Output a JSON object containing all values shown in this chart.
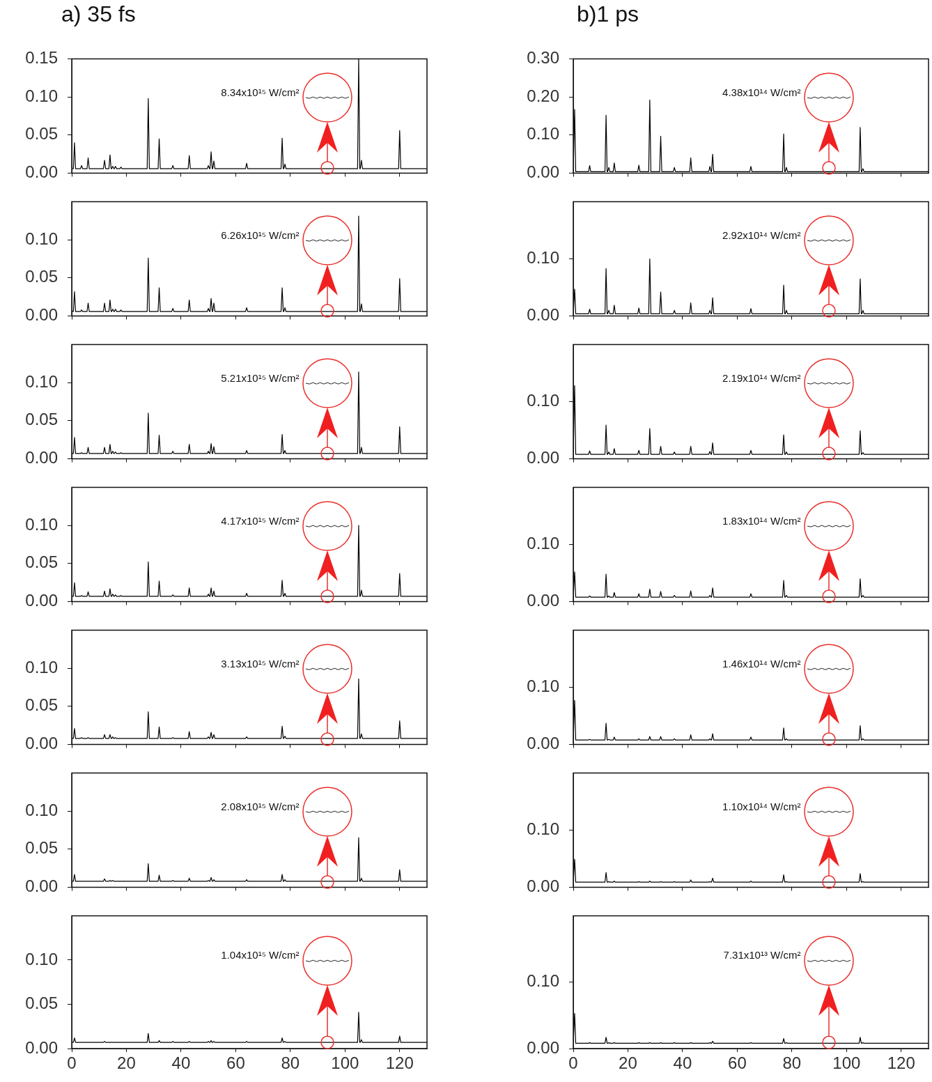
{
  "chart_data": [
    {
      "type": "line",
      "title": "a) 35 fs",
      "annotations": [
        "8.34x10¹⁵ W/cm²"
      ],
      "xlim": [
        0,
        130
      ],
      "xticks": [
        0,
        20,
        40,
        60,
        80,
        100,
        120
      ],
      "ylim": [
        0,
        0.15
      ],
      "yticks": [
        {
          "value": 0,
          "label": "0.00"
        },
        {
          "value": 0.05,
          "label": "0.05"
        },
        {
          "value": 0.1,
          "label": "0.10"
        },
        {
          "value": 0.15,
          "label": "0.15"
        }
      ],
      "tick_labels": "y",
      "x": [
        0,
        0.6,
        1,
        1.4,
        3.2,
        3.6,
        4,
        5.6,
        6,
        6.4,
        11.6,
        12,
        12.4,
        13.6,
        14,
        14.4,
        14.6,
        15,
        15.4,
        15.6,
        16,
        16.4,
        17.6,
        18,
        18.4,
        27.6,
        28,
        28.4,
        31.6,
        32,
        32.4,
        36.6,
        37,
        37.4,
        42.6,
        43,
        43.4,
        49.6,
        50,
        50.4,
        50.6,
        51,
        51.4,
        51.6,
        52,
        52.4,
        63.6,
        64,
        64.4,
        76.6,
        77,
        77.4,
        77.6,
        78,
        78.4,
        104.6,
        105,
        105.4,
        105.6,
        106,
        106.4,
        119.6,
        120,
        120.4,
        130
      ],
      "series": [
        {
          "color": "#000000",
          "values": [
            0.006,
            0.006,
            0.04,
            0.006,
            0.006,
            0.01,
            0.006,
            0.006,
            0.02,
            0.006,
            0.006,
            0.017,
            0.006,
            0.006,
            0.024,
            0.006,
            0.006,
            0.009,
            0.006,
            0.006,
            0.009,
            0.006,
            0.006,
            0.008,
            0.006,
            0.006,
            0.098,
            0.006,
            0.006,
            0.045,
            0.006,
            0.006,
            0.01,
            0.006,
            0.006,
            0.023,
            0.006,
            0.006,
            0.01,
            0.006,
            0.006,
            0.028,
            0.006,
            0.006,
            0.016,
            0.006,
            0.006,
            0.013,
            0.006,
            0.006,
            0.046,
            0.006,
            0.006,
            0.012,
            0.006,
            0.006,
            0.15,
            0.006,
            0.006,
            0.017,
            0.006,
            0.006,
            0.056,
            0.006,
            0.006
          ]
        }
      ]
    },
    {
      "type": "line",
      "annotations": [
        "6.26x10¹⁵ W/cm²"
      ],
      "xlim": [
        0,
        130
      ],
      "xticks": [
        0,
        20,
        40,
        60,
        80,
        100,
        120
      ],
      "ylim": [
        0,
        0.15
      ],
      "yticks": [
        {
          "value": 0,
          "label": "0.00"
        },
        {
          "value": 0.05,
          "label": "0.05"
        },
        {
          "value": 0.1,
          "label": "0.10"
        }
      ],
      "tick_labels": "y",
      "x": [
        0,
        0.6,
        1,
        1.4,
        3.2,
        3.6,
        4,
        5.6,
        6,
        6.4,
        11.6,
        12,
        12.4,
        13.6,
        14,
        14.4,
        14.6,
        15,
        15.4,
        15.6,
        16,
        16.4,
        17.6,
        18,
        18.4,
        27.6,
        28,
        28.4,
        31.6,
        32,
        32.4,
        36.6,
        37,
        37.4,
        42.6,
        43,
        43.4,
        49.6,
        50,
        50.4,
        50.6,
        51,
        51.4,
        51.6,
        52,
        52.4,
        63.6,
        64,
        64.4,
        76.6,
        77,
        77.4,
        77.6,
        78,
        78.4,
        104.6,
        105,
        105.4,
        105.6,
        106,
        106.4,
        119.6,
        120,
        120.4,
        130
      ],
      "series": [
        {
          "color": "#000000",
          "values": [
            0.006,
            0.006,
            0.032,
            0.006,
            0.006,
            0.008,
            0.006,
            0.006,
            0.017,
            0.006,
            0.006,
            0.017,
            0.006,
            0.006,
            0.021,
            0.006,
            0.006,
            0.009,
            0.006,
            0.006,
            0.009,
            0.006,
            0.006,
            0.008,
            0.006,
            0.006,
            0.076,
            0.006,
            0.006,
            0.037,
            0.006,
            0.006,
            0.01,
            0.006,
            0.006,
            0.021,
            0.006,
            0.006,
            0.01,
            0.006,
            0.006,
            0.023,
            0.006,
            0.006,
            0.017,
            0.006,
            0.006,
            0.011,
            0.006,
            0.006,
            0.037,
            0.006,
            0.006,
            0.011,
            0.006,
            0.006,
            0.131,
            0.006,
            0.006,
            0.016,
            0.006,
            0.006,
            0.049,
            0.006,
            0.006
          ]
        }
      ]
    },
    {
      "type": "line",
      "annotations": [
        "5.21x10¹⁵ W/cm²"
      ],
      "xlim": [
        0,
        130
      ],
      "xticks": [
        0,
        20,
        40,
        60,
        80,
        100,
        120
      ],
      "ylim": [
        0,
        0.15
      ],
      "yticks": [
        {
          "value": 0,
          "label": "0.00"
        },
        {
          "value": 0.05,
          "label": "0.05"
        },
        {
          "value": 0.1,
          "label": "0.10"
        }
      ],
      "tick_labels": "y",
      "x": [
        0,
        0.6,
        1,
        1.4,
        3.2,
        3.6,
        4,
        5.6,
        6,
        6.4,
        11.6,
        12,
        12.4,
        13.6,
        14,
        14.4,
        14.6,
        15,
        15.4,
        15.6,
        16,
        16.4,
        17.6,
        18,
        18.4,
        27.6,
        28,
        28.4,
        31.6,
        32,
        32.4,
        36.6,
        37,
        37.4,
        42.6,
        43,
        43.4,
        49.6,
        50,
        50.4,
        50.6,
        51,
        51.4,
        51.6,
        52,
        52.4,
        63.6,
        64,
        64.4,
        76.6,
        77,
        77.4,
        77.6,
        78,
        78.4,
        104.6,
        105,
        105.4,
        105.6,
        106,
        106.4,
        119.6,
        120,
        120.4,
        130
      ],
      "series": [
        {
          "color": "#000000",
          "values": [
            0.007,
            0.007,
            0.028,
            0.007,
            0.007,
            0.008,
            0.007,
            0.007,
            0.015,
            0.007,
            0.007,
            0.015,
            0.007,
            0.007,
            0.019,
            0.007,
            0.007,
            0.01,
            0.007,
            0.007,
            0.009,
            0.007,
            0.007,
            0.008,
            0.007,
            0.007,
            0.06,
            0.007,
            0.007,
            0.031,
            0.007,
            0.007,
            0.01,
            0.007,
            0.007,
            0.019,
            0.007,
            0.007,
            0.01,
            0.007,
            0.007,
            0.02,
            0.007,
            0.007,
            0.016,
            0.007,
            0.007,
            0.011,
            0.007,
            0.007,
            0.032,
            0.007,
            0.007,
            0.011,
            0.007,
            0.007,
            0.114,
            0.007,
            0.007,
            0.015,
            0.007,
            0.007,
            0.042,
            0.007,
            0.007
          ]
        }
      ]
    },
    {
      "type": "line",
      "annotations": [
        "4.17x10¹⁵ W/cm²"
      ],
      "xlim": [
        0,
        130
      ],
      "xticks": [
        0,
        20,
        40,
        60,
        80,
        100,
        120
      ],
      "ylim": [
        0,
        0.15
      ],
      "yticks": [
        {
          "value": 0,
          "label": "0.00"
        },
        {
          "value": 0.05,
          "label": "0.05"
        },
        {
          "value": 0.1,
          "label": "0.10"
        }
      ],
      "tick_labels": "y",
      "x": [
        0,
        0.6,
        1,
        1.4,
        3.2,
        3.6,
        4,
        5.6,
        6,
        6.4,
        11.6,
        12,
        12.4,
        13.6,
        14,
        14.4,
        14.6,
        15,
        15.4,
        15.6,
        16,
        16.4,
        17.6,
        18,
        18.4,
        27.6,
        28,
        28.4,
        31.6,
        32,
        32.4,
        36.6,
        37,
        37.4,
        42.6,
        43,
        43.4,
        49.6,
        50,
        50.4,
        50.6,
        51,
        51.4,
        51.6,
        52,
        52.4,
        63.6,
        64,
        64.4,
        76.6,
        77,
        77.4,
        77.6,
        78,
        78.4,
        104.6,
        105,
        105.4,
        105.6,
        106,
        106.4,
        119.6,
        120,
        120.4,
        130
      ],
      "series": [
        {
          "color": "#000000",
          "values": [
            0.007,
            0.007,
            0.025,
            0.007,
            0.007,
            0.008,
            0.007,
            0.007,
            0.013,
            0.007,
            0.007,
            0.014,
            0.007,
            0.007,
            0.017,
            0.007,
            0.007,
            0.01,
            0.007,
            0.007,
            0.009,
            0.007,
            0.007,
            0.008,
            0.007,
            0.007,
            0.052,
            0.007,
            0.007,
            0.027,
            0.007,
            0.007,
            0.009,
            0.007,
            0.007,
            0.018,
            0.007,
            0.007,
            0.01,
            0.007,
            0.007,
            0.018,
            0.007,
            0.007,
            0.014,
            0.007,
            0.007,
            0.011,
            0.007,
            0.007,
            0.028,
            0.007,
            0.007,
            0.011,
            0.007,
            0.007,
            0.1,
            0.007,
            0.007,
            0.015,
            0.007,
            0.007,
            0.037,
            0.007,
            0.007
          ]
        }
      ]
    },
    {
      "type": "line",
      "annotations": [
        "3.13x10¹⁵ W/cm²"
      ],
      "xlim": [
        0,
        130
      ],
      "xticks": [
        0,
        20,
        40,
        60,
        80,
        100,
        120
      ],
      "ylim": [
        0,
        0.15
      ],
      "yticks": [
        {
          "value": 0,
          "label": "0.00"
        },
        {
          "value": 0.05,
          "label": "0.05"
        },
        {
          "value": 0.1,
          "label": "0.10"
        }
      ],
      "tick_labels": "y",
      "x": [
        0,
        0.6,
        1,
        1.4,
        3.2,
        3.6,
        4,
        5.6,
        6,
        6.4,
        11.6,
        12,
        12.4,
        13.6,
        14,
        14.4,
        14.6,
        15,
        15.4,
        15.6,
        16,
        16.4,
        17.6,
        18,
        18.4,
        27.6,
        28,
        28.4,
        31.6,
        32,
        32.4,
        36.6,
        37,
        37.4,
        42.6,
        43,
        43.4,
        49.6,
        50,
        50.4,
        50.6,
        51,
        51.4,
        51.6,
        52,
        52.4,
        63.6,
        64,
        64.4,
        76.6,
        77,
        77.4,
        77.6,
        78,
        78.4,
        104.6,
        105,
        105.4,
        105.6,
        106,
        106.4,
        119.6,
        120,
        120.4,
        130
      ],
      "series": [
        {
          "color": "#000000",
          "values": [
            0.008,
            0.008,
            0.021,
            0.008,
            0.008,
            0.009,
            0.008,
            0.008,
            0.009,
            0.008,
            0.008,
            0.013,
            0.008,
            0.008,
            0.013,
            0.008,
            0.008,
            0.01,
            0.008,
            0.008,
            0.009,
            0.008,
            0.008,
            0.008,
            0.008,
            0.008,
            0.043,
            0.008,
            0.008,
            0.023,
            0.008,
            0.008,
            0.009,
            0.008,
            0.008,
            0.017,
            0.008,
            0.008,
            0.01,
            0.008,
            0.008,
            0.016,
            0.008,
            0.008,
            0.013,
            0.008,
            0.008,
            0.01,
            0.008,
            0.008,
            0.024,
            0.008,
            0.008,
            0.011,
            0.008,
            0.008,
            0.086,
            0.008,
            0.008,
            0.014,
            0.008,
            0.008,
            0.031,
            0.008,
            0.008
          ]
        }
      ]
    },
    {
      "type": "line",
      "annotations": [
        "2.08x10¹⁵ W/cm²"
      ],
      "xlim": [
        0,
        130
      ],
      "xticks": [
        0,
        20,
        40,
        60,
        80,
        100,
        120
      ],
      "ylim": [
        0,
        0.15
      ],
      "yticks": [
        {
          "value": 0,
          "label": "0.00"
        },
        {
          "value": 0.05,
          "label": "0.05"
        },
        {
          "value": 0.1,
          "label": "0.10"
        }
      ],
      "tick_labels": "y",
      "x": [
        0,
        0.6,
        1,
        1.4,
        3.2,
        3.6,
        4,
        5.6,
        6,
        6.4,
        11.6,
        12,
        12.4,
        13.6,
        14,
        14.4,
        14.6,
        15,
        15.4,
        15.6,
        16,
        16.4,
        17.6,
        18,
        18.4,
        27.6,
        28,
        28.4,
        31.6,
        32,
        32.4,
        36.6,
        37,
        37.4,
        42.6,
        43,
        43.4,
        49.6,
        50,
        50.4,
        50.6,
        51,
        51.4,
        51.6,
        52,
        52.4,
        63.6,
        64,
        64.4,
        76.6,
        77,
        77.4,
        77.6,
        78,
        78.4,
        104.6,
        105,
        105.4,
        105.6,
        106,
        106.4,
        119.6,
        120,
        120.4,
        130
      ],
      "series": [
        {
          "color": "#000000",
          "values": [
            0.008,
            0.008,
            0.017,
            0.008,
            0.008,
            0.008,
            0.008,
            0.008,
            0.008,
            0.008,
            0.008,
            0.011,
            0.008,
            0.008,
            0.009,
            0.008,
            0.008,
            0.009,
            0.008,
            0.008,
            0.008,
            0.008,
            0.008,
            0.008,
            0.008,
            0.008,
            0.031,
            0.008,
            0.008,
            0.016,
            0.008,
            0.008,
            0.009,
            0.008,
            0.008,
            0.012,
            0.008,
            0.008,
            0.009,
            0.008,
            0.008,
            0.013,
            0.008,
            0.008,
            0.01,
            0.008,
            0.008,
            0.01,
            0.008,
            0.008,
            0.017,
            0.008,
            0.008,
            0.01,
            0.008,
            0.008,
            0.065,
            0.008,
            0.008,
            0.012,
            0.008,
            0.008,
            0.023,
            0.008,
            0.008
          ]
        }
      ]
    },
    {
      "type": "line",
      "annotations": [
        "1.04x10¹⁵ W/cm²"
      ],
      "xlim": [
        0,
        130
      ],
      "xticks": [
        0,
        20,
        40,
        60,
        80,
        100,
        120
      ],
      "ylim": [
        0,
        0.15
      ],
      "yticks": [
        {
          "value": 0,
          "label": "0.00"
        },
        {
          "value": 0.05,
          "label": "0.05"
        },
        {
          "value": 0.1,
          "label": "0.10"
        }
      ],
      "x": [
        0,
        0.6,
        1,
        1.4,
        3.2,
        3.6,
        4,
        5.6,
        6,
        6.4,
        11.6,
        12,
        12.4,
        13.6,
        14,
        14.4,
        14.6,
        15,
        15.4,
        15.6,
        16,
        16.4,
        17.6,
        18,
        18.4,
        27.6,
        28,
        28.4,
        31.6,
        32,
        32.4,
        36.6,
        37,
        37.4,
        42.6,
        43,
        43.4,
        49.6,
        50,
        50.4,
        50.6,
        51,
        51.4,
        51.6,
        52,
        52.4,
        63.6,
        64,
        64.4,
        76.6,
        77,
        77.4,
        77.6,
        78,
        78.4,
        104.6,
        105,
        105.4,
        105.6,
        106,
        106.4,
        119.6,
        120,
        120.4,
        130
      ],
      "series": [
        {
          "color": "#000000",
          "values": [
            0.007,
            0.007,
            0.012,
            0.007,
            0.007,
            0.007,
            0.007,
            0.007,
            0.007,
            0.007,
            0.007,
            0.008,
            0.007,
            0.007,
            0.007,
            0.007,
            0.007,
            0.007,
            0.007,
            0.007,
            0.007,
            0.007,
            0.007,
            0.007,
            0.007,
            0.007,
            0.017,
            0.007,
            0.007,
            0.009,
            0.007,
            0.007,
            0.008,
            0.007,
            0.007,
            0.008,
            0.007,
            0.007,
            0.008,
            0.007,
            0.007,
            0.009,
            0.007,
            0.007,
            0.008,
            0.007,
            0.007,
            0.008,
            0.007,
            0.007,
            0.012,
            0.007,
            0.007,
            0.008,
            0.007,
            0.007,
            0.041,
            0.007,
            0.007,
            0.01,
            0.007,
            0.007,
            0.014,
            0.007,
            0.007
          ]
        }
      ]
    },
    {
      "type": "line",
      "title": "b)1 ps",
      "annotations": [
        "4.38x10¹⁴ W/cm²"
      ],
      "xlim": [
        0,
        130
      ],
      "xticks": [
        0,
        20,
        40,
        60,
        80,
        100,
        120
      ],
      "ylim": [
        0,
        0.3
      ],
      "yticks": [
        {
          "value": 0,
          "label": "0.00"
        },
        {
          "value": 0.1,
          "label": "0.10"
        },
        {
          "value": 0.2,
          "label": "0.20"
        },
        {
          "value": 0.3,
          "label": "0.30"
        }
      ],
      "tick_labels": "y",
      "x": [
        0,
        0.1,
        0.5,
        0.9,
        5.6,
        6,
        6.4,
        11.6,
        12,
        12.4,
        12.6,
        13,
        13.4,
        14.6,
        15,
        15.4,
        23.6,
        24,
        24.4,
        27.6,
        28,
        28.4,
        31.6,
        32,
        32.4,
        36.6,
        37,
        37.4,
        42.6,
        43,
        43.4,
        49.6,
        50,
        50.4,
        50.6,
        51,
        51.4,
        64.6,
        65,
        65.4,
        76.6,
        77,
        77.4,
        77.6,
        78,
        78.4,
        104.6,
        105,
        105.4,
        105.6,
        106,
        106.4,
        130
      ],
      "series": [
        {
          "color": "#000000",
          "values": [
            0.004,
            0.004,
            0.167,
            0.004,
            0.004,
            0.02,
            0.004,
            0.004,
            0.152,
            0.004,
            0.004,
            0.015,
            0.004,
            0.004,
            0.027,
            0.004,
            0.004,
            0.021,
            0.004,
            0.004,
            0.192,
            0.004,
            0.004,
            0.097,
            0.004,
            0.004,
            0.015,
            0.004,
            0.004,
            0.04,
            0.004,
            0.004,
            0.018,
            0.004,
            0.004,
            0.05,
            0.004,
            0.004,
            0.018,
            0.004,
            0.004,
            0.103,
            0.004,
            0.004,
            0.015,
            0.004,
            0.004,
            0.12,
            0.004,
            0.004,
            0.012,
            0.004,
            0.004
          ]
        }
      ]
    },
    {
      "type": "line",
      "annotations": [
        "2.92x10¹⁴ W/cm²"
      ],
      "xlim": [
        0,
        130
      ],
      "xticks": [
        0,
        20,
        40,
        60,
        80,
        100,
        120
      ],
      "ylim": [
        0,
        0.2
      ],
      "yticks": [
        {
          "value": 0,
          "label": "0.00"
        },
        {
          "value": 0.1,
          "label": "0.10"
        }
      ],
      "tick_labels": "y",
      "x": [
        0,
        0.1,
        0.5,
        0.9,
        5.6,
        6,
        6.4,
        11.6,
        12,
        12.4,
        12.6,
        13,
        13.4,
        14.6,
        15,
        15.4,
        23.6,
        24,
        24.4,
        27.6,
        28,
        28.4,
        31.6,
        32,
        32.4,
        36.6,
        37,
        37.4,
        42.6,
        43,
        43.4,
        49.6,
        50,
        50.4,
        50.6,
        51,
        51.4,
        64.6,
        65,
        65.4,
        76.6,
        77,
        77.4,
        77.6,
        78,
        78.4,
        104.6,
        105,
        105.4,
        105.6,
        106,
        106.4,
        130
      ],
      "series": [
        {
          "color": "#000000",
          "values": [
            0.004,
            0.004,
            0.047,
            0.004,
            0.004,
            0.012,
            0.004,
            0.004,
            0.083,
            0.004,
            0.004,
            0.01,
            0.004,
            0.004,
            0.019,
            0.004,
            0.004,
            0.014,
            0.004,
            0.004,
            0.1,
            0.004,
            0.004,
            0.042,
            0.004,
            0.004,
            0.01,
            0.004,
            0.004,
            0.023,
            0.004,
            0.004,
            0.01,
            0.004,
            0.004,
            0.032,
            0.004,
            0.004,
            0.013,
            0.004,
            0.004,
            0.054,
            0.004,
            0.004,
            0.01,
            0.004,
            0.004,
            0.065,
            0.004,
            0.004,
            0.01,
            0.004,
            0.004
          ]
        }
      ]
    },
    {
      "type": "line",
      "annotations": [
        "2.19x10¹⁴ W/cm²"
      ],
      "xlim": [
        0,
        130
      ],
      "xticks": [
        0,
        20,
        40,
        60,
        80,
        100,
        120
      ],
      "ylim": [
        0,
        0.2
      ],
      "yticks": [
        {
          "value": 0,
          "label": "0.00"
        },
        {
          "value": 0.1,
          "label": "0.10"
        }
      ],
      "tick_labels": "y",
      "x": [
        0,
        0.1,
        0.5,
        0.9,
        5.6,
        6,
        6.4,
        11.6,
        12,
        12.4,
        12.6,
        13,
        13.4,
        14.6,
        15,
        15.4,
        23.6,
        24,
        24.4,
        27.6,
        28,
        28.4,
        31.6,
        32,
        32.4,
        36.6,
        37,
        37.4,
        42.6,
        43,
        43.4,
        49.6,
        50,
        50.4,
        50.6,
        51,
        51.4,
        64.6,
        65,
        65.4,
        76.6,
        77,
        77.4,
        77.6,
        78,
        78.4,
        104.6,
        105,
        105.4,
        105.6,
        106,
        106.4,
        130
      ],
      "series": [
        {
          "color": "#000000",
          "values": [
            0.008,
            0.008,
            0.128,
            0.008,
            0.008,
            0.014,
            0.008,
            0.008,
            0.059,
            0.008,
            0.008,
            0.012,
            0.008,
            0.008,
            0.018,
            0.008,
            0.008,
            0.015,
            0.008,
            0.008,
            0.053,
            0.008,
            0.008,
            0.022,
            0.008,
            0.008,
            0.012,
            0.008,
            0.008,
            0.022,
            0.008,
            0.008,
            0.013,
            0.008,
            0.008,
            0.028,
            0.008,
            0.008,
            0.015,
            0.008,
            0.008,
            0.042,
            0.008,
            0.008,
            0.012,
            0.008,
            0.008,
            0.049,
            0.008,
            0.008,
            0.011,
            0.008,
            0.008
          ]
        }
      ]
    },
    {
      "type": "line",
      "annotations": [
        "1.83x10¹⁴ W/cm²"
      ],
      "xlim": [
        0,
        130
      ],
      "xticks": [
        0,
        20,
        40,
        60,
        80,
        100,
        120
      ],
      "ylim": [
        0,
        0.2
      ],
      "yticks": [
        {
          "value": 0,
          "label": "0.00"
        },
        {
          "value": 0.1,
          "label": "0.10"
        }
      ],
      "tick_labels": "y",
      "x": [
        0,
        0.1,
        0.5,
        0.9,
        5.6,
        6,
        6.4,
        11.6,
        12,
        12.4,
        12.6,
        13,
        13.4,
        14.6,
        15,
        15.4,
        23.6,
        24,
        24.4,
        27.6,
        28,
        28.4,
        31.6,
        32,
        32.4,
        36.6,
        37,
        37.4,
        42.6,
        43,
        43.4,
        49.6,
        50,
        50.4,
        50.6,
        51,
        51.4,
        64.6,
        65,
        65.4,
        76.6,
        77,
        77.4,
        77.6,
        78,
        78.4,
        104.6,
        105,
        105.4,
        105.6,
        106,
        106.4,
        130
      ],
      "series": [
        {
          "color": "#000000",
          "values": [
            0.008,
            0.008,
            0.052,
            0.008,
            0.008,
            0.01,
            0.008,
            0.008,
            0.048,
            0.008,
            0.008,
            0.01,
            0.008,
            0.008,
            0.016,
            0.008,
            0.008,
            0.014,
            0.008,
            0.008,
            0.022,
            0.008,
            0.008,
            0.018,
            0.008,
            0.008,
            0.011,
            0.008,
            0.008,
            0.019,
            0.008,
            0.008,
            0.011,
            0.008,
            0.008,
            0.024,
            0.008,
            0.008,
            0.014,
            0.008,
            0.008,
            0.037,
            0.008,
            0.008,
            0.011,
            0.008,
            0.008,
            0.04,
            0.008,
            0.008,
            0.011,
            0.008,
            0.008
          ]
        }
      ]
    },
    {
      "type": "line",
      "annotations": [
        "1.46x10¹⁴ W/cm²"
      ],
      "xlim": [
        0,
        130
      ],
      "xticks": [
        0,
        20,
        40,
        60,
        80,
        100,
        120
      ],
      "ylim": [
        0,
        0.2
      ],
      "yticks": [
        {
          "value": 0,
          "label": "0.00"
        },
        {
          "value": 0.1,
          "label": "0.10"
        }
      ],
      "tick_labels": "y",
      "x": [
        0,
        0.1,
        0.5,
        0.9,
        5.6,
        6,
        6.4,
        11.6,
        12,
        12.4,
        12.6,
        13,
        13.4,
        14.6,
        15,
        15.4,
        23.6,
        24,
        24.4,
        27.6,
        28,
        28.4,
        31.6,
        32,
        32.4,
        36.6,
        37,
        37.4,
        42.6,
        43,
        43.4,
        49.6,
        50,
        50.4,
        50.6,
        51,
        51.4,
        64.6,
        65,
        65.4,
        76.6,
        77,
        77.4,
        77.6,
        78,
        78.4,
        104.6,
        105,
        105.4,
        105.6,
        106,
        106.4,
        130
      ],
      "series": [
        {
          "color": "#000000",
          "values": [
            0.008,
            0.008,
            0.077,
            0.008,
            0.008,
            0.009,
            0.008,
            0.008,
            0.037,
            0.008,
            0.008,
            0.009,
            0.008,
            0.008,
            0.013,
            0.008,
            0.008,
            0.01,
            0.008,
            0.008,
            0.014,
            0.008,
            0.008,
            0.014,
            0.008,
            0.008,
            0.01,
            0.008,
            0.008,
            0.017,
            0.008,
            0.008,
            0.01,
            0.008,
            0.008,
            0.019,
            0.008,
            0.008,
            0.013,
            0.008,
            0.008,
            0.029,
            0.008,
            0.008,
            0.01,
            0.008,
            0.008,
            0.033,
            0.008,
            0.008,
            0.01,
            0.008,
            0.008
          ]
        }
      ]
    },
    {
      "type": "line",
      "annotations": [
        "1.10x10¹⁴ W/cm²"
      ],
      "xlim": [
        0,
        130
      ],
      "xticks": [
        0,
        20,
        40,
        60,
        80,
        100,
        120
      ],
      "ylim": [
        0,
        0.2
      ],
      "yticks": [
        {
          "value": 0,
          "label": "0.00"
        },
        {
          "value": 0.1,
          "label": "0.10"
        }
      ],
      "tick_labels": "y",
      "x": [
        0,
        0.1,
        0.5,
        0.9,
        5.6,
        6,
        6.4,
        11.6,
        12,
        12.4,
        12.6,
        13,
        13.4,
        14.6,
        15,
        15.4,
        23.6,
        24,
        24.4,
        27.6,
        28,
        28.4,
        31.6,
        32,
        32.4,
        36.6,
        37,
        37.4,
        42.6,
        43,
        43.4,
        49.6,
        50,
        50.4,
        50.6,
        51,
        51.4,
        64.6,
        65,
        65.4,
        76.6,
        77,
        77.4,
        77.6,
        78,
        78.4,
        104.6,
        105,
        105.4,
        105.6,
        106,
        106.4,
        130
      ],
      "series": [
        {
          "color": "#000000",
          "values": [
            0.009,
            0.009,
            0.049,
            0.009,
            0.009,
            0.009,
            0.009,
            0.009,
            0.026,
            0.009,
            0.009,
            0.01,
            0.009,
            0.009,
            0.011,
            0.009,
            0.009,
            0.01,
            0.009,
            0.009,
            0.011,
            0.009,
            0.009,
            0.01,
            0.009,
            0.009,
            0.01,
            0.009,
            0.009,
            0.013,
            0.009,
            0.009,
            0.01,
            0.009,
            0.009,
            0.016,
            0.009,
            0.009,
            0.011,
            0.009,
            0.009,
            0.022,
            0.009,
            0.009,
            0.01,
            0.009,
            0.009,
            0.024,
            0.009,
            0.009,
            0.01,
            0.009,
            0.009
          ]
        }
      ]
    },
    {
      "type": "line",
      "annotations": [
        "7.31x10¹³ W/cm²"
      ],
      "xlim": [
        0,
        130
      ],
      "xticks": [
        0,
        20,
        40,
        60,
        80,
        100,
        120
      ],
      "ylim": [
        0,
        0.2
      ],
      "yticks": [
        {
          "value": 0,
          "label": "0.00"
        },
        {
          "value": 0.1,
          "label": "0.10"
        }
      ],
      "x": [
        0,
        0.1,
        0.5,
        0.9,
        5.6,
        6,
        6.4,
        11.6,
        12,
        12.4,
        12.6,
        13,
        13.4,
        14.6,
        15,
        15.4,
        23.6,
        24,
        24.4,
        27.6,
        28,
        28.4,
        31.6,
        32,
        32.4,
        36.6,
        37,
        37.4,
        42.6,
        43,
        43.4,
        49.6,
        50,
        50.4,
        50.6,
        51,
        51.4,
        64.6,
        65,
        65.4,
        76.6,
        77,
        77.4,
        77.6,
        78,
        78.4,
        104.6,
        105,
        105.4,
        105.6,
        106,
        106.4,
        130
      ],
      "series": [
        {
          "color": "#000000",
          "values": [
            0.008,
            0.008,
            0.053,
            0.008,
            0.008,
            0.009,
            0.008,
            0.008,
            0.017,
            0.008,
            0.008,
            0.009,
            0.008,
            0.008,
            0.009,
            0.008,
            0.008,
            0.009,
            0.008,
            0.008,
            0.009,
            0.008,
            0.008,
            0.009,
            0.008,
            0.008,
            0.009,
            0.008,
            0.008,
            0.009,
            0.008,
            0.008,
            0.009,
            0.008,
            0.008,
            0.011,
            0.008,
            0.008,
            0.009,
            0.008,
            0.008,
            0.015,
            0.008,
            0.008,
            0.009,
            0.008,
            0.008,
            0.017,
            0.008,
            0.008,
            0.009,
            0.008,
            0.008
          ]
        }
      ]
    }
  ]
}
